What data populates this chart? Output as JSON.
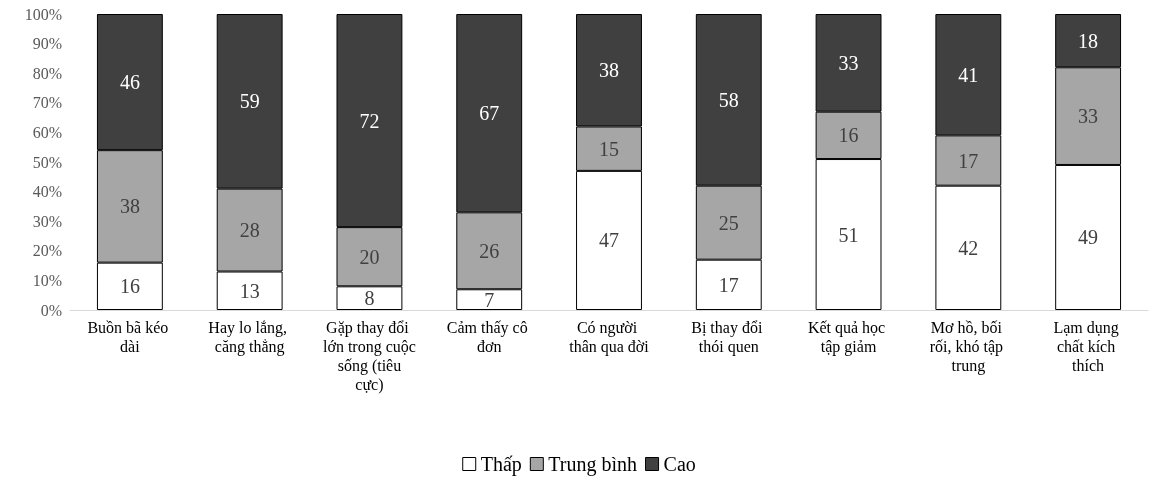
{
  "chart_data": {
    "type": "bar",
    "stacked": true,
    "data_labels": true,
    "grid": false,
    "legend": "bottom",
    "categories": [
      "Buồn bã kéo dài",
      "Hay lo lắng, căng thẳng",
      "Gặp thay đổi lớn trong cuộc sống (tiêu cực)",
      "Cảm thấy cô đơn",
      "Có người thân qua đời",
      "Bị thay đổi thói quen",
      "Kết quả học tập giảm",
      "Mơ hồ, bối rối, khó tập trung",
      "Lạm dụng chất kích thích"
    ],
    "series": [
      {
        "name": "Thấp",
        "color": "#ffffff",
        "values": [
          16,
          13,
          8,
          7,
          47,
          17,
          51,
          42,
          49
        ]
      },
      {
        "name": "Trung bình",
        "color": "#a6a6a6",
        "values": [
          38,
          28,
          20,
          26,
          15,
          25,
          16,
          17,
          33
        ]
      },
      {
        "name": "Cao",
        "color": "#404040",
        "values": [
          46,
          59,
          72,
          67,
          38,
          58,
          33,
          41,
          18
        ]
      }
    ],
    "ylim": [
      0,
      100
    ],
    "yticks": [
      {
        "value": 0,
        "label": "0%"
      },
      {
        "value": 10,
        "label": "10%"
      },
      {
        "value": 20,
        "label": "20%"
      },
      {
        "value": 30,
        "label": "30%"
      },
      {
        "value": 40,
        "label": "40%"
      },
      {
        "value": 50,
        "label": "50%"
      },
      {
        "value": 60,
        "label": "60%"
      },
      {
        "value": 70,
        "label": "70%"
      },
      {
        "value": 80,
        "label": "80%"
      },
      {
        "value": 90,
        "label": "90%"
      },
      {
        "value": 100,
        "label": "100%"
      }
    ]
  }
}
